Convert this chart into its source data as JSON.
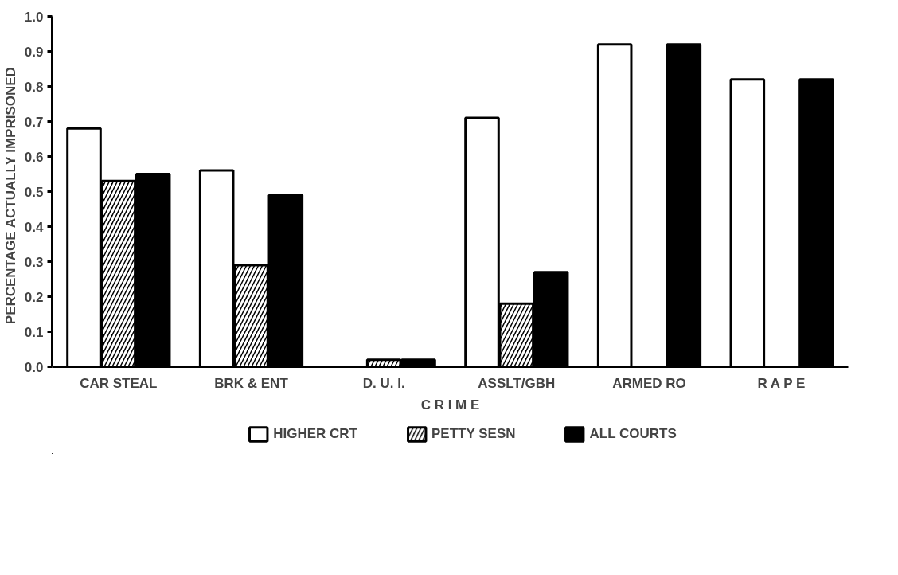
{
  "chart_data": {
    "type": "bar",
    "xlabel": "C R I M E",
    "ylabel": "PERCENTAGE  ACTUALLY  IMPRISONED",
    "categories": [
      "CAR STEAL",
      "BRK & ENT",
      "D. U. I.",
      "ASSLT/GBH",
      "ARMED RO",
      "R A P E"
    ],
    "series": [
      {
        "name": "HIGHER CRT",
        "color": "#ffffff",
        "values": [
          0.68,
          0.56,
          null,
          0.71,
          0.92,
          0.82
        ]
      },
      {
        "name": "PETTY SESN",
        "color": "#000000",
        "values": [
          0.53,
          0.29,
          0.02,
          0.18,
          null,
          null
        ]
      },
      {
        "name": "ALL COURTS",
        "color": "#000000",
        "values": [
          0.55,
          0.49,
          0.02,
          0.27,
          0.92,
          0.82
        ]
      }
    ],
    "ylim": [
      0,
      1
    ],
    "yticks": [
      {
        "value": 0,
        "label": "0.0"
      },
      0.1,
      0.2,
      0.3,
      0.4,
      0.5,
      0.6,
      0.7,
      0.8,
      0.9,
      {
        "value": 1,
        "label": "1.0"
      }
    ],
    "legend": "bottom",
    "grid": false
  }
}
